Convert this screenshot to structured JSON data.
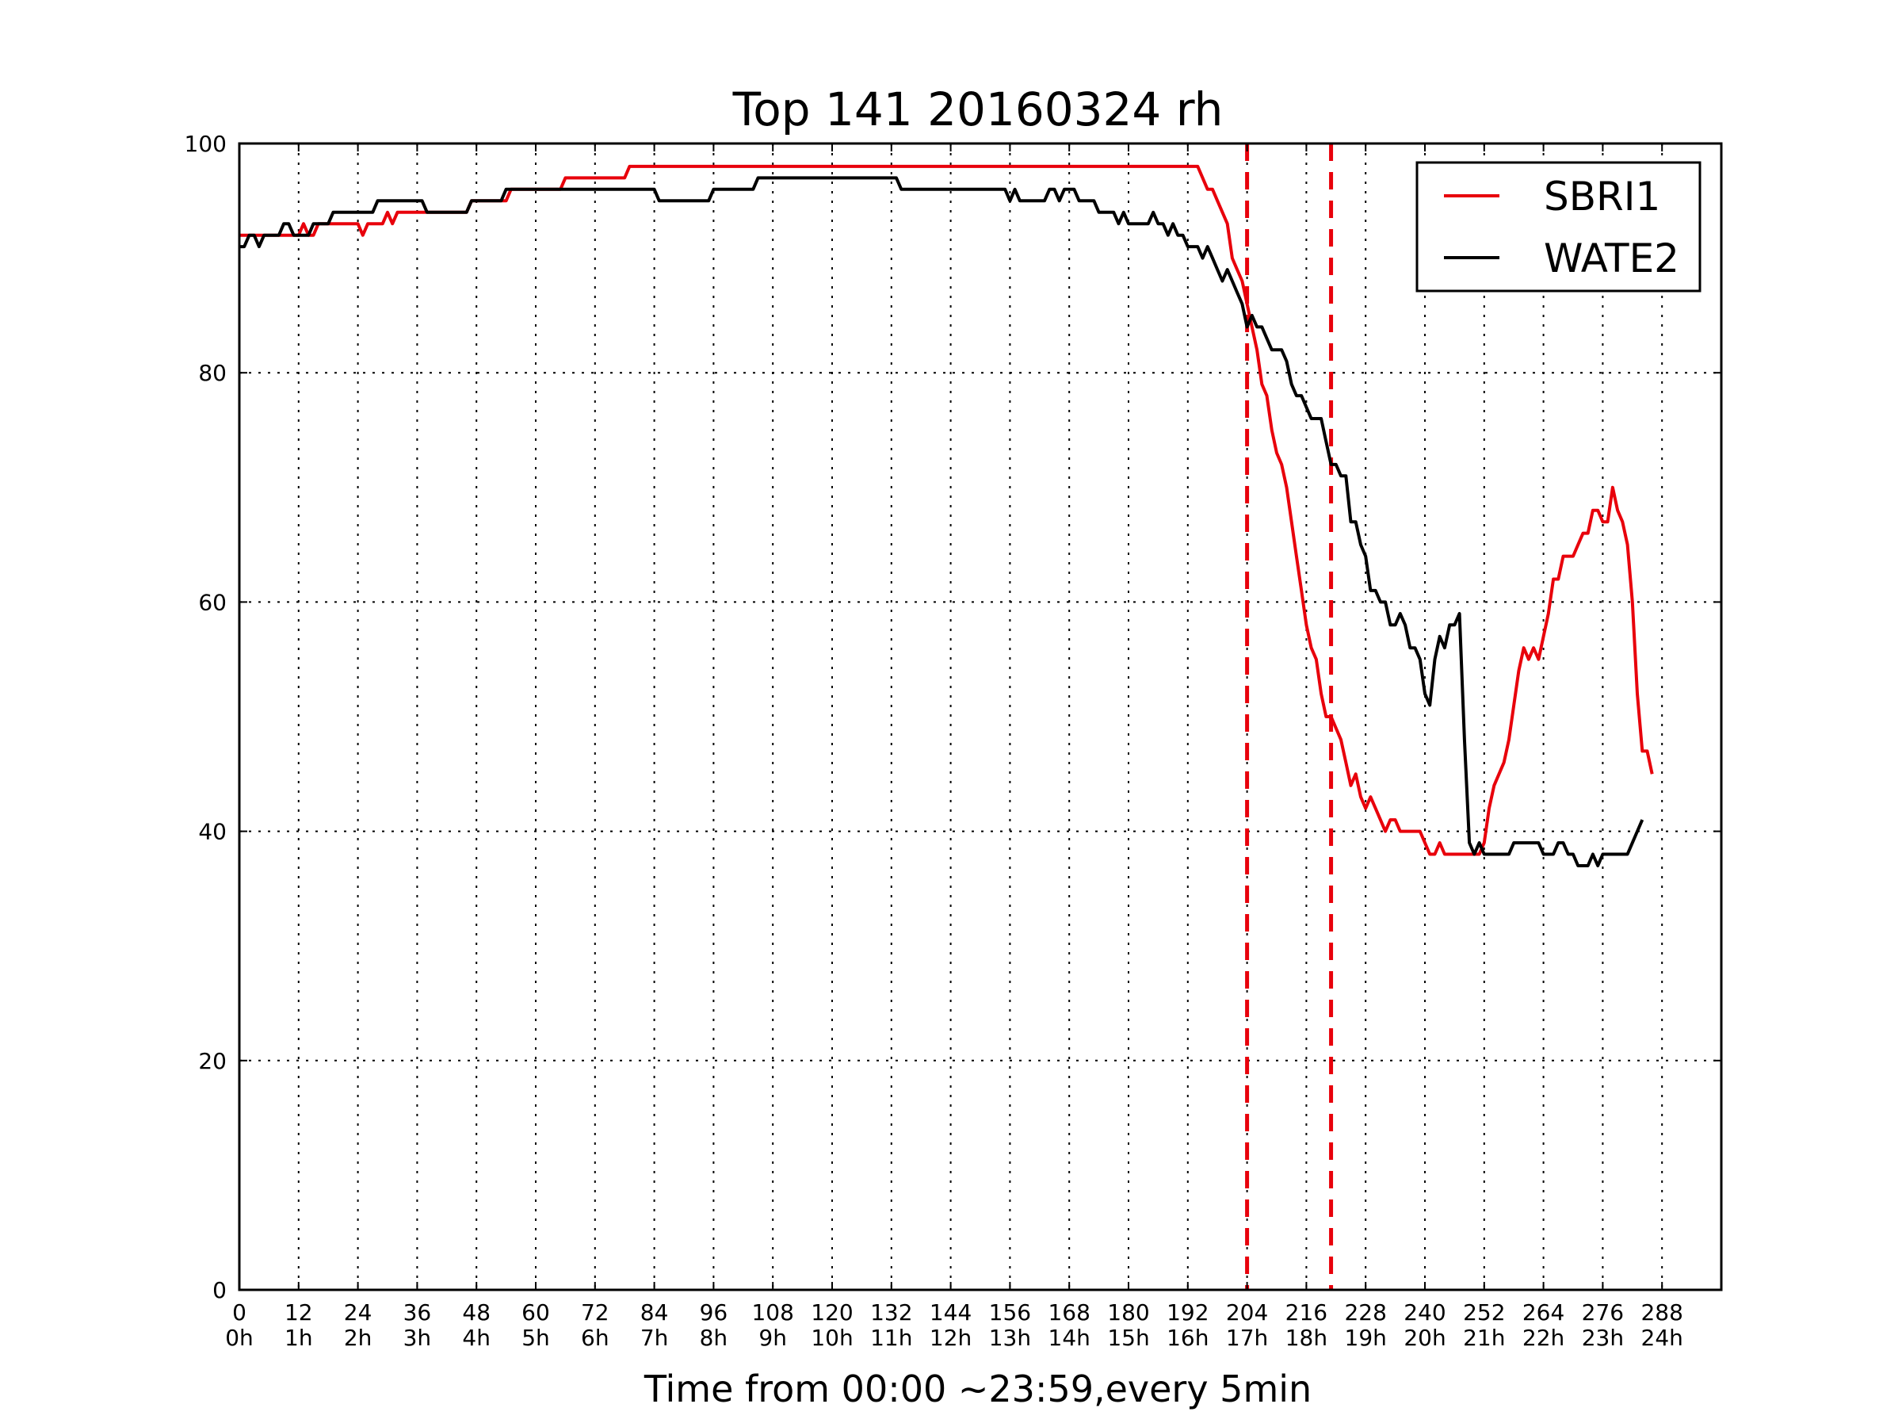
{
  "chart_data": {
    "type": "line",
    "title": "Top 141 20160324 rh",
    "xlabel": "Time from 00:00 ~23:59,every 5min",
    "ylabel": "",
    "xlim": [
      0,
      300
    ],
    "ylim": [
      0,
      100
    ],
    "x_ticks": [
      {
        "value": 0,
        "label": "0",
        "sub": "0h"
      },
      {
        "value": 12,
        "label": "12",
        "sub": "1h"
      },
      {
        "value": 24,
        "label": "24",
        "sub": "2h"
      },
      {
        "value": 36,
        "label": "36",
        "sub": "3h"
      },
      {
        "value": 48,
        "label": "48",
        "sub": "4h"
      },
      {
        "value": 60,
        "label": "60",
        "sub": "5h"
      },
      {
        "value": 72,
        "label": "72",
        "sub": "6h"
      },
      {
        "value": 84,
        "label": "84",
        "sub": "7h"
      },
      {
        "value": 96,
        "label": "96",
        "sub": "8h"
      },
      {
        "value": 108,
        "label": "108",
        "sub": "9h"
      },
      {
        "value": 120,
        "label": "120",
        "sub": "10h"
      },
      {
        "value": 132,
        "label": "132",
        "sub": "11h"
      },
      {
        "value": 144,
        "label": "144",
        "sub": "12h"
      },
      {
        "value": 156,
        "label": "156",
        "sub": "13h"
      },
      {
        "value": 168,
        "label": "168",
        "sub": "14h"
      },
      {
        "value": 180,
        "label": "180",
        "sub": "15h"
      },
      {
        "value": 192,
        "label": "192",
        "sub": "16h"
      },
      {
        "value": 204,
        "label": "204",
        "sub": "17h"
      },
      {
        "value": 216,
        "label": "216",
        "sub": "18h"
      },
      {
        "value": 228,
        "label": "228",
        "sub": "19h"
      },
      {
        "value": 240,
        "label": "240",
        "sub": "20h"
      },
      {
        "value": 252,
        "label": "252",
        "sub": "21h"
      },
      {
        "value": 264,
        "label": "264",
        "sub": "22h"
      },
      {
        "value": 276,
        "label": "276",
        "sub": "23h"
      },
      {
        "value": 288,
        "label": "288",
        "sub": "24h"
      }
    ],
    "y_ticks": [
      {
        "value": 0,
        "label": "0"
      },
      {
        "value": 20,
        "label": "20"
      },
      {
        "value": 40,
        "label": "40"
      },
      {
        "value": 60,
        "label": "60"
      },
      {
        "value": 80,
        "label": "80"
      },
      {
        "value": 100,
        "label": "100"
      }
    ],
    "grid": true,
    "legend_position": "top-right",
    "vlines": [
      {
        "x": 204,
        "color": "#e8000b",
        "style": "dashed"
      },
      {
        "x": 221,
        "color": "#e8000b",
        "style": "dashed"
      }
    ],
    "series": [
      {
        "name": "SBRI1",
        "color": "#e8000b",
        "points": [
          [
            0,
            92
          ],
          [
            12,
            92
          ],
          [
            13,
            93
          ],
          [
            14,
            92
          ],
          [
            15,
            92
          ],
          [
            16,
            93
          ],
          [
            24,
            93
          ],
          [
            25,
            92
          ],
          [
            26,
            93
          ],
          [
            29,
            93
          ],
          [
            30,
            94
          ],
          [
            31,
            93
          ],
          [
            32,
            94
          ],
          [
            42,
            94
          ],
          [
            46,
            94
          ],
          [
            47,
            95
          ],
          [
            54,
            95
          ],
          [
            55,
            96
          ],
          [
            65,
            96
          ],
          [
            66,
            97
          ],
          [
            78,
            97
          ],
          [
            79,
            98
          ],
          [
            190,
            98
          ],
          [
            194,
            98
          ],
          [
            196,
            96
          ],
          [
            197,
            96
          ],
          [
            198,
            95
          ],
          [
            200,
            93
          ],
          [
            201,
            90
          ],
          [
            202,
            89
          ],
          [
            203,
            88
          ],
          [
            204,
            86
          ],
          [
            205,
            84
          ],
          [
            206,
            82
          ],
          [
            207,
            79
          ],
          [
            208,
            78
          ],
          [
            209,
            75
          ],
          [
            210,
            73
          ],
          [
            211,
            72
          ],
          [
            212,
            70
          ],
          [
            213,
            67
          ],
          [
            214,
            64
          ],
          [
            215,
            61
          ],
          [
            216,
            58
          ],
          [
            217,
            56
          ],
          [
            218,
            55
          ],
          [
            219,
            52
          ],
          [
            220,
            50
          ],
          [
            221,
            50
          ],
          [
            222,
            49
          ],
          [
            223,
            48
          ],
          [
            224,
            46
          ],
          [
            225,
            44
          ],
          [
            226,
            45
          ],
          [
            227,
            43
          ],
          [
            228,
            42
          ],
          [
            229,
            43
          ],
          [
            230,
            42
          ],
          [
            231,
            41
          ],
          [
            232,
            40
          ],
          [
            233,
            41
          ],
          [
            234,
            41
          ],
          [
            235,
            40
          ],
          [
            239,
            40
          ],
          [
            240,
            39
          ],
          [
            241,
            38
          ],
          [
            242,
            38
          ],
          [
            243,
            39
          ],
          [
            244,
            38
          ],
          [
            249,
            38
          ],
          [
            251,
            38
          ],
          [
            252,
            39
          ],
          [
            253,
            42
          ],
          [
            254,
            44
          ],
          [
            255,
            45
          ],
          [
            256,
            46
          ],
          [
            257,
            48
          ],
          [
            258,
            51
          ],
          [
            259,
            54
          ],
          [
            260,
            56
          ],
          [
            261,
            55
          ],
          [
            262,
            56
          ],
          [
            263,
            55
          ],
          [
            264,
            57
          ],
          [
            265,
            59
          ],
          [
            266,
            62
          ],
          [
            267,
            62
          ],
          [
            268,
            64
          ],
          [
            270,
            64
          ],
          [
            271,
            65
          ],
          [
            272,
            66
          ],
          [
            273,
            66
          ],
          [
            274,
            68
          ],
          [
            275,
            68
          ],
          [
            276,
            67
          ],
          [
            277,
            67
          ],
          [
            278,
            70
          ],
          [
            279,
            68
          ],
          [
            280,
            67
          ],
          [
            281,
            65
          ],
          [
            282,
            60
          ],
          [
            283,
            52
          ],
          [
            284,
            47
          ],
          [
            285,
            47
          ],
          [
            286,
            45
          ]
        ]
      },
      {
        "name": "WATE2",
        "color": "#000000",
        "points": [
          [
            0,
            91
          ],
          [
            1,
            91
          ],
          [
            2,
            92
          ],
          [
            3,
            92
          ],
          [
            4,
            91
          ],
          [
            5,
            92
          ],
          [
            8,
            92
          ],
          [
            9,
            93
          ],
          [
            10,
            93
          ],
          [
            11,
            92
          ],
          [
            14,
            92
          ],
          [
            15,
            93
          ],
          [
            18,
            93
          ],
          [
            19,
            94
          ],
          [
            27,
            94
          ],
          [
            28,
            95
          ],
          [
            37,
            95
          ],
          [
            38,
            94
          ],
          [
            46,
            94
          ],
          [
            47,
            95
          ],
          [
            53,
            95
          ],
          [
            54,
            96
          ],
          [
            84,
            96
          ],
          [
            85,
            95
          ],
          [
            95,
            95
          ],
          [
            96,
            96
          ],
          [
            104,
            96
          ],
          [
            105,
            97
          ],
          [
            133,
            97
          ],
          [
            134,
            96
          ],
          [
            155,
            96
          ],
          [
            156,
            95
          ],
          [
            157,
            96
          ],
          [
            158,
            95
          ],
          [
            163,
            95
          ],
          [
            164,
            96
          ],
          [
            165,
            96
          ],
          [
            166,
            95
          ],
          [
            167,
            96
          ],
          [
            169,
            96
          ],
          [
            170,
            95
          ],
          [
            173,
            95
          ],
          [
            174,
            94
          ],
          [
            177,
            94
          ],
          [
            178,
            93
          ],
          [
            179,
            94
          ],
          [
            180,
            93
          ],
          [
            184,
            93
          ],
          [
            185,
            94
          ],
          [
            186,
            93
          ],
          [
            187,
            93
          ],
          [
            188,
            92
          ],
          [
            189,
            93
          ],
          [
            190,
            92
          ],
          [
            191,
            92
          ],
          [
            192,
            91
          ],
          [
            194,
            91
          ],
          [
            195,
            90
          ],
          [
            196,
            91
          ],
          [
            197,
            90
          ],
          [
            198,
            89
          ],
          [
            199,
            88
          ],
          [
            200,
            89
          ],
          [
            201,
            88
          ],
          [
            202,
            87
          ],
          [
            203,
            86
          ],
          [
            204,
            84
          ],
          [
            205,
            85
          ],
          [
            206,
            84
          ],
          [
            207,
            84
          ],
          [
            208,
            83
          ],
          [
            209,
            82
          ],
          [
            211,
            82
          ],
          [
            212,
            81
          ],
          [
            213,
            79
          ],
          [
            214,
            78
          ],
          [
            215,
            78
          ],
          [
            216,
            77
          ],
          [
            217,
            76
          ],
          [
            219,
            76
          ],
          [
            220,
            74
          ],
          [
            221,
            72
          ],
          [
            222,
            72
          ],
          [
            223,
            71
          ],
          [
            224,
            71
          ],
          [
            225,
            67
          ],
          [
            226,
            67
          ],
          [
            227,
            65
          ],
          [
            228,
            64
          ],
          [
            229,
            61
          ],
          [
            230,
            61
          ],
          [
            231,
            60
          ],
          [
            232,
            60
          ],
          [
            233,
            58
          ],
          [
            234,
            58
          ],
          [
            235,
            59
          ],
          [
            236,
            58
          ],
          [
            237,
            56
          ],
          [
            238,
            56
          ],
          [
            239,
            55
          ],
          [
            240,
            52
          ],
          [
            241,
            51
          ],
          [
            242,
            55
          ],
          [
            243,
            57
          ],
          [
            244,
            56
          ],
          [
            245,
            58
          ],
          [
            246,
            58
          ],
          [
            247,
            59
          ],
          [
            248,
            48
          ],
          [
            249,
            39
          ],
          [
            250,
            38
          ],
          [
            251,
            39
          ],
          [
            252,
            38
          ],
          [
            257,
            38
          ],
          [
            258,
            39
          ],
          [
            263,
            39
          ],
          [
            264,
            38
          ],
          [
            266,
            38
          ],
          [
            267,
            39
          ],
          [
            268,
            39
          ],
          [
            269,
            38
          ],
          [
            270,
            38
          ],
          [
            271,
            37
          ],
          [
            273,
            37
          ],
          [
            274,
            38
          ],
          [
            275,
            37
          ],
          [
            276,
            38
          ],
          [
            281,
            38
          ],
          [
            282,
            39
          ],
          [
            283,
            40
          ],
          [
            284,
            41
          ]
        ]
      }
    ]
  }
}
